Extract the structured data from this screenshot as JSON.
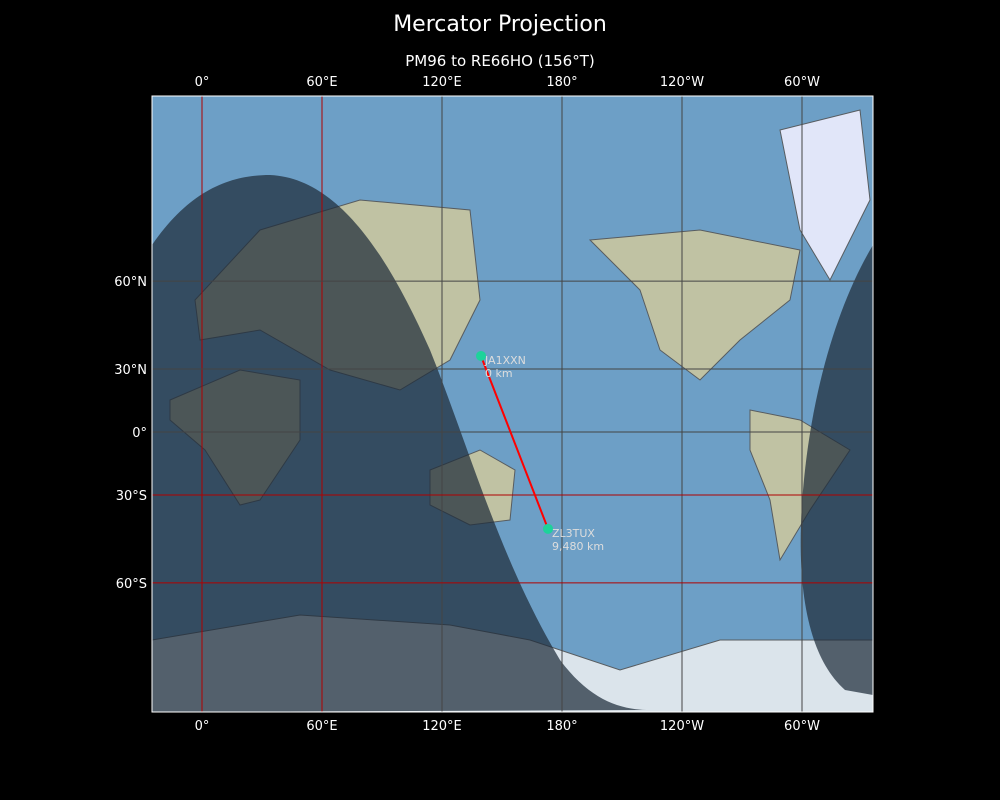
{
  "title": "Mercator Projection",
  "subtitle": "PM96 to RE66HO (156°T)",
  "map": {
    "projection": "Mercator",
    "lon_ticks": [
      {
        "lon": 0,
        "label": "0°"
      },
      {
        "lon": 60,
        "label": "60°E"
      },
      {
        "lon": 120,
        "label": "120°E"
      },
      {
        "lon": 180,
        "label": "180°"
      },
      {
        "lon": 240,
        "label": "120°W"
      },
      {
        "lon": 300,
        "label": "60°W"
      }
    ],
    "lat_ticks": [
      {
        "lat": 60,
        "label": "60°N"
      },
      {
        "lat": 30,
        "label": "30°N"
      },
      {
        "lat": 0,
        "label": "0°"
      },
      {
        "lat": -30,
        "label": "30°S"
      },
      {
        "lat": -60,
        "label": "60°S"
      }
    ],
    "red_gridlines": {
      "lon": [
        0,
        60
      ],
      "lat": [
        -30,
        -60
      ]
    },
    "colors": {
      "ocean": "#6d9fc6",
      "night": "#2b3a48",
      "path": "#ff0000",
      "marker": "#1dd39a",
      "grid": "#444444",
      "grid_red": "#b00000"
    },
    "stations": [
      {
        "call": "JA1XXN",
        "distance": "0 km",
        "lon": 139.5,
        "lat": 35.5
      },
      {
        "call": "ZL3TUX",
        "distance": "9,480 km",
        "lon": 173,
        "lat": -43.5
      }
    ]
  }
}
